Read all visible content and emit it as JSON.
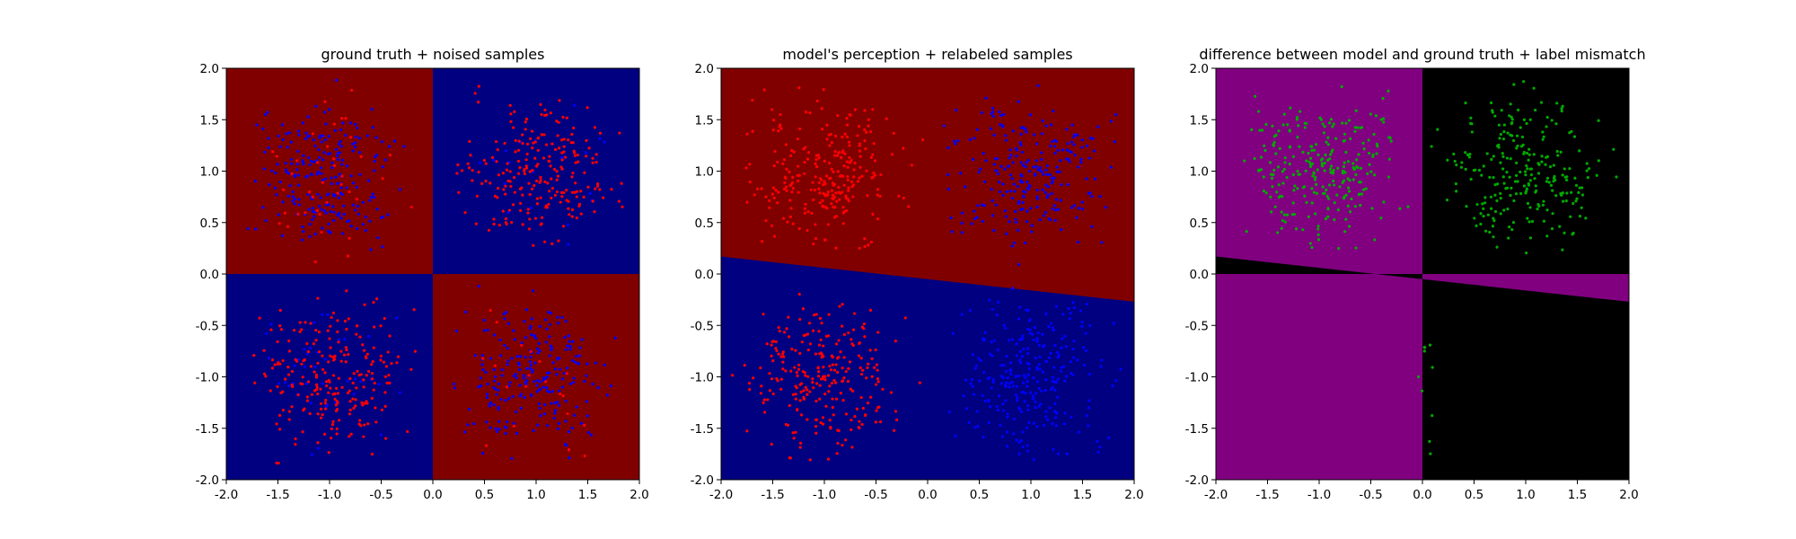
{
  "chart_data": [
    {
      "type": "heatmap",
      "title": "ground truth + noised samples",
      "xlim": [
        -2.0,
        2.0
      ],
      "ylim": [
        -2.0,
        2.0
      ],
      "xticks": [
        "-2.0",
        "-1.5",
        "-1.0",
        "-0.5",
        "0.0",
        "0.5",
        "1.0",
        "1.5",
        "2.0"
      ],
      "yticks": [
        "2.0",
        "1.5",
        "1.0",
        "0.5",
        "0.0",
        "-0.5",
        "-1.0",
        "-1.5",
        "-2.0"
      ],
      "grid": false,
      "colors": {
        "class_a": "#800000",
        "class_b": "#000080",
        "marker_a": "#ff0000",
        "marker_b": "#0000ff"
      },
      "background": "XOR quadrants: class_a where x<0,y>0 and x>0,y<0; class_b otherwise",
      "series": [
        {
          "name": "",
          "color": "#0000ff",
          "points_per_quadrant": [
            230,
            20,
            40,
            230
          ]
        },
        {
          "name": "",
          "color": "#ff0000",
          "points_per_quadrant": [
            40,
            230,
            230,
            20
          ]
        }
      ]
    },
    {
      "type": "heatmap",
      "title": "model's perception + relabeled samples",
      "xlim": [
        -2.0,
        2.0
      ],
      "ylim": [
        -2.0,
        2.0
      ],
      "xticks": [
        "-2.0",
        "-1.5",
        "-1.0",
        "-0.5",
        "0.0",
        "0.5",
        "1.0",
        "1.5",
        "2.0"
      ],
      "yticks": [
        "2.0",
        "1.5",
        "1.0",
        "0.5",
        "0.0",
        "-0.5",
        "-1.0",
        "-1.5",
        "-2.0"
      ],
      "grid": false,
      "colors": {
        "class_a": "#800000",
        "class_b": "#000080",
        "marker_a": "#ff0000",
        "marker_b": "#0000ff"
      },
      "boundary_line": {
        "x": [
          -2.0,
          2.0
        ],
        "y": [
          0.17,
          -0.27
        ]
      },
      "background": "class_a above the boundary line, class_b below",
      "series": [
        {
          "name": "",
          "color": "#ff0000",
          "region": "x<0"
        },
        {
          "name": "",
          "color": "#0000ff",
          "region": "x>0"
        }
      ]
    },
    {
      "type": "heatmap",
      "title": "difference between model and ground truth + label mismatch",
      "xlim": [
        -2.0,
        2.0
      ],
      "ylim": [
        -2.0,
        2.0
      ],
      "xticks": [
        "-2.0",
        "-1.5",
        "-1.0",
        "-0.5",
        "0.0",
        "0.5",
        "1.0",
        "1.5",
        "2.0"
      ],
      "yticks": [
        "2.0",
        "1.5",
        "1.0",
        "0.5",
        "0.0",
        "-0.5",
        "-1.0",
        "-1.5",
        "-2.0"
      ],
      "grid": false,
      "colors": {
        "mismatch": "#800080",
        "match": "#000000",
        "marker": "#00aa00"
      },
      "boundary_line": {
        "x": [
          -2.0,
          2.0
        ],
        "y": [
          0.17,
          -0.27
        ]
      },
      "background": "mismatch where model prediction differs from ground truth quadrant labels",
      "series": [
        {
          "name": "",
          "color": "#00aa00",
          "points_per_quadrant": [
            270,
            250,
            10,
            0
          ]
        }
      ]
    }
  ]
}
